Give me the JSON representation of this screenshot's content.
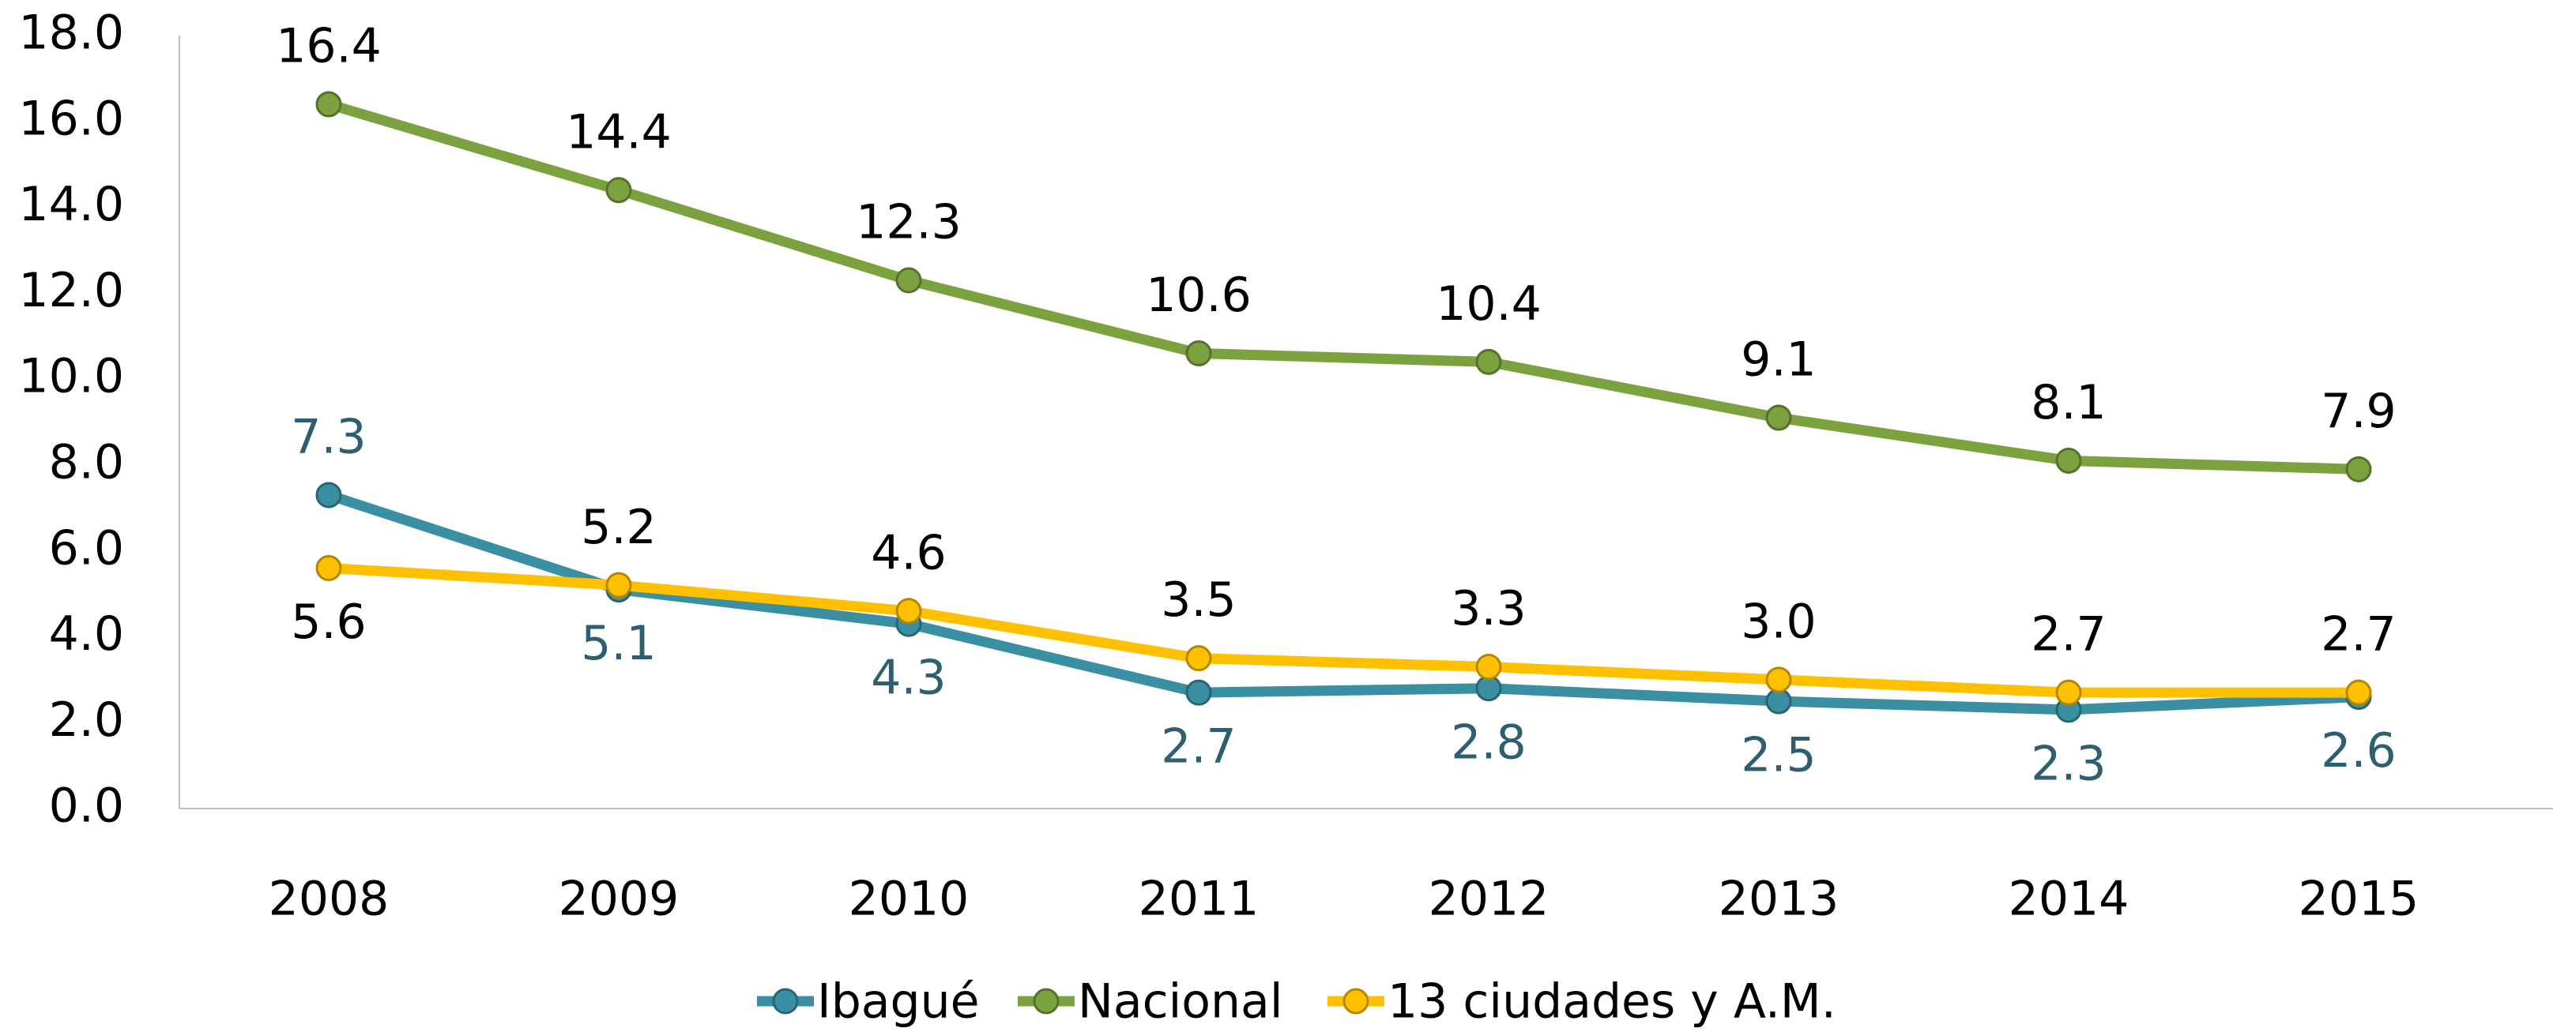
{
  "chart_data": {
    "type": "line",
    "categories": [
      "2008",
      "2009",
      "2010",
      "2011",
      "2012",
      "2013",
      "2014",
      "2015"
    ],
    "series": [
      {
        "name": "Ibagué",
        "color": "#3a8fa3",
        "values": [
          7.3,
          5.1,
          4.3,
          2.7,
          2.8,
          2.5,
          2.3,
          2.6
        ],
        "value_labels": [
          "7.3",
          "5.1",
          "4.3",
          "2.7",
          "2.8",
          "2.5",
          "2.3",
          "2.6"
        ]
      },
      {
        "name": "Nacional",
        "color": "#7ba23f",
        "values": [
          16.4,
          14.4,
          12.3,
          10.6,
          10.4,
          9.1,
          8.1,
          7.9
        ],
        "value_labels": [
          "16.4",
          "14.4",
          "12.3",
          "10.6",
          "10.4",
          "9.1",
          "8.1",
          "7.9"
        ]
      },
      {
        "name": "13 ciudades y A.M.",
        "color": "#ffc000",
        "values": [
          5.6,
          5.2,
          4.6,
          3.5,
          3.3,
          3.0,
          2.7,
          2.7
        ],
        "value_labels": [
          "5.6",
          "5.2",
          "4.6",
          "3.5",
          "3.3",
          "3.0",
          "2.7",
          "2.7"
        ]
      }
    ],
    "ylim": [
      0,
      18
    ],
    "yticks": [
      {
        "value": 0,
        "label": "0.0"
      },
      {
        "value": 2,
        "label": "2.0"
      },
      {
        "value": 4,
        "label": "4.0"
      },
      {
        "value": 6,
        "label": "6.0"
      },
      {
        "value": 8,
        "label": "8.0"
      },
      {
        "value": 10,
        "label": "10.0"
      },
      {
        "value": 12,
        "label": "12.0"
      },
      {
        "value": 14,
        "label": "14.0"
      },
      {
        "value": 16,
        "label": "16.0"
      },
      {
        "value": 18,
        "label": "18.0"
      }
    ],
    "grid": false,
    "legend": "bottom"
  }
}
